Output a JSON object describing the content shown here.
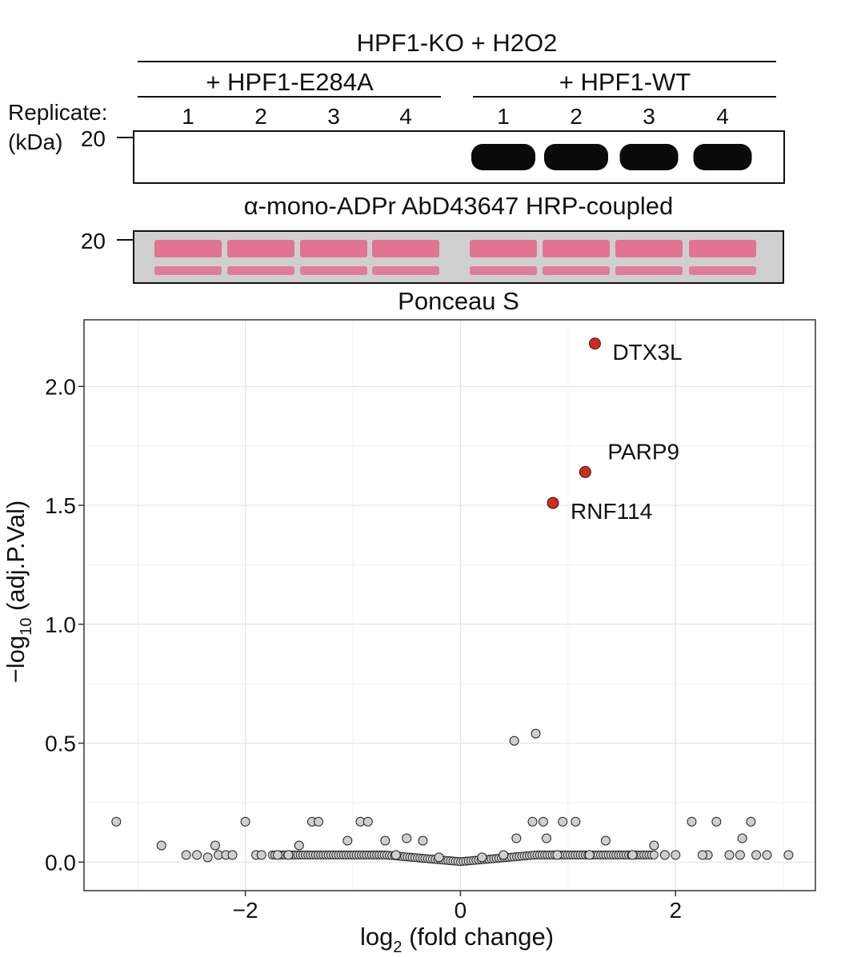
{
  "blot": {
    "header": "HPF1-KO + H2O2",
    "group_left": "+ HPF1-E284A",
    "group_right": "+ HPF1-WT",
    "replicate_label": "Replicate:",
    "kda_label": "(kDa)",
    "marker": "20",
    "lanes": [
      "1",
      "2",
      "3",
      "4",
      "1",
      "2",
      "3",
      "4"
    ],
    "band_intensity": [
      0,
      0,
      0,
      0,
      1,
      1,
      0.9,
      0.9
    ],
    "antibody_caption": "α-mono-ADPr AbD43647 HRP-coupled",
    "ponceau_marker": "20",
    "ponceau_caption": "Ponceau S",
    "colors": {
      "band": "#0a0a0a",
      "ponceau": "#e26f8f",
      "ponceau_bg": "#cfcfcf"
    }
  },
  "chart_data": {
    "type": "scatter",
    "title": "",
    "xlabel": "log",
    "xlabel_sub": "2",
    "xlabel_rest": " (fold change)",
    "ylabel": "−log",
    "ylabel_sub": "10",
    "ylabel_rest": " (adj.P.Val)",
    "xlim": [
      -3.5,
      3.3
    ],
    "ylim": [
      -0.12,
      2.28
    ],
    "xticks": [
      -2,
      0,
      2
    ],
    "xtick_labels": [
      "−2",
      "0",
      "2"
    ],
    "yticks": [
      0.0,
      0.5,
      1.0,
      1.5,
      2.0
    ],
    "ytick_labels": [
      "0.0",
      "0.5",
      "1.0",
      "1.5",
      "2.0"
    ],
    "grid": true,
    "colors": {
      "highlight": "#d42a1e",
      "other": "#cfcfcf"
    },
    "highlighted": [
      {
        "label": "DTX3L",
        "x": 1.25,
        "y": 2.18
      },
      {
        "label": "PARP9",
        "x": 1.16,
        "y": 1.64
      },
      {
        "label": "RNF114",
        "x": 0.86,
        "y": 1.51
      }
    ],
    "points": [
      [
        -3.2,
        0.17
      ],
      [
        -2.78,
        0.07
      ],
      [
        -2.55,
        0.03
      ],
      [
        -2.45,
        0.03
      ],
      [
        -2.35,
        0.02
      ],
      [
        -2.28,
        0.07
      ],
      [
        -2.25,
        0.03
      ],
      [
        -2.18,
        0.03
      ],
      [
        -2.12,
        0.03
      ],
      [
        -2.0,
        0.17
      ],
      [
        -1.9,
        0.03
      ],
      [
        -1.85,
        0.03
      ],
      [
        -1.7,
        0.03
      ],
      [
        -1.6,
        0.03
      ],
      [
        -1.5,
        0.07
      ],
      [
        -1.38,
        0.17
      ],
      [
        -1.32,
        0.17
      ],
      [
        -1.05,
        0.09
      ],
      [
        -0.93,
        0.17
      ],
      [
        -0.86,
        0.17
      ],
      [
        -0.7,
        0.09
      ],
      [
        -0.5,
        0.1
      ],
      [
        -0.35,
        0.09
      ],
      [
        0.5,
        0.51
      ],
      [
        0.7,
        0.54
      ],
      [
        0.52,
        0.1
      ],
      [
        0.67,
        0.17
      ],
      [
        0.77,
        0.17
      ],
      [
        0.8,
        0.1
      ],
      [
        0.95,
        0.17
      ],
      [
        1.07,
        0.17
      ],
      [
        1.35,
        0.09
      ],
      [
        1.8,
        0.07
      ],
      [
        2.15,
        0.17
      ],
      [
        2.38,
        0.17
      ],
      [
        2.62,
        0.1
      ],
      [
        2.7,
        0.17
      ],
      [
        1.6,
        0.03
      ],
      [
        1.9,
        0.03
      ],
      [
        2.3,
        0.03
      ],
      [
        2.6,
        0.03
      ],
      [
        2.85,
        0.03
      ],
      [
        3.05,
        0.03
      ],
      [
        2.0,
        0.03
      ],
      [
        2.25,
        0.03
      ],
      [
        2.5,
        0.03
      ],
      [
        2.75,
        0.03
      ],
      [
        -0.6,
        0.03
      ],
      [
        -0.2,
        0.02
      ],
      [
        0.2,
        0.02
      ],
      [
        0.4,
        0.03
      ],
      [
        0.9,
        0.03
      ],
      [
        1.2,
        0.03
      ]
    ]
  }
}
